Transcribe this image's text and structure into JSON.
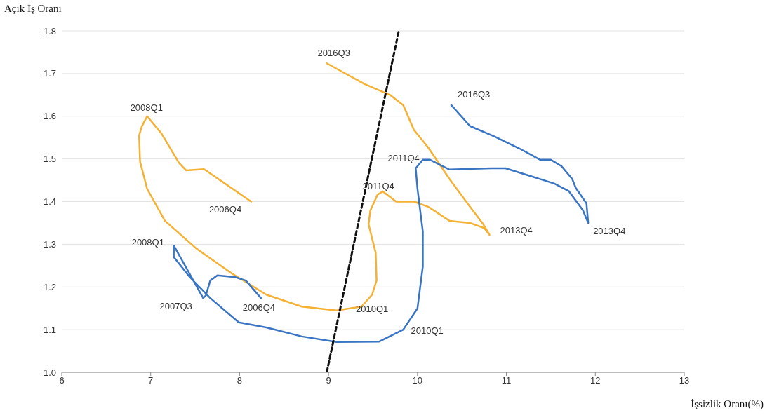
{
  "chart_data": {
    "type": "line",
    "xlabel": "İşsizlik Oranı(%)",
    "ylabel": "Açık İş Oranı",
    "xlim": [
      6,
      13
    ],
    "xticks": [
      6,
      7,
      8,
      9,
      10,
      11,
      12,
      13
    ],
    "ylim": [
      1.0,
      1.8
    ],
    "yticks": [
      {
        "value": 1.0,
        "label": "1.0"
      },
      {
        "value": 1.1,
        "label": "1.1"
      },
      {
        "value": 1.2,
        "label": "1.2"
      },
      {
        "value": 1.3,
        "label": "1.3"
      },
      {
        "value": 1.4,
        "label": "1.4"
      },
      {
        "value": 1.5,
        "label": "1.5"
      },
      {
        "value": 1.6,
        "label": "1.6"
      },
      {
        "value": 1.7,
        "label": "1.7"
      },
      {
        "value": 1.8,
        "label": "1.8"
      }
    ],
    "grid": "y",
    "series": [
      {
        "color": "#f5b133",
        "x": [
          8.13,
          7.6,
          7.4,
          7.32,
          7.12,
          6.96,
          6.9,
          6.87,
          6.88,
          6.96,
          7.16,
          7.52,
          7.91,
          8.3,
          8.7,
          9.09,
          9.37,
          9.49,
          9.54,
          9.53,
          9.45,
          9.47,
          9.55,
          9.61,
          9.76,
          9.96,
          10.12,
          10.36,
          10.59,
          10.75,
          10.81,
          10.74,
          10.59,
          10.36,
          10.12,
          9.96,
          9.84,
          9.69,
          9.41,
          8.98
        ],
        "values": [
          1.4,
          1.476,
          1.473,
          1.49,
          1.56,
          1.6,
          1.576,
          1.555,
          1.494,
          1.43,
          1.355,
          1.289,
          1.232,
          1.182,
          1.154,
          1.145,
          1.154,
          1.182,
          1.215,
          1.28,
          1.347,
          1.379,
          1.416,
          1.424,
          1.4,
          1.4,
          1.388,
          1.355,
          1.35,
          1.338,
          1.322,
          1.347,
          1.388,
          1.453,
          1.527,
          1.568,
          1.626,
          1.65,
          1.675,
          1.724
        ]
      },
      {
        "color": "#3a75c4",
        "x": [
          8.24,
          8.07,
          7.95,
          7.75,
          7.67,
          7.62,
          7.59,
          7.26,
          7.26,
          7.44,
          7.67,
          7.99,
          8.3,
          8.7,
          9.09,
          9.57,
          9.84,
          10.0,
          10.06,
          10.06,
          10.0,
          9.98,
          10.06,
          10.14,
          10.36,
          10.83,
          10.99,
          11.3,
          11.54,
          11.7,
          11.86,
          11.92,
          11.9,
          11.78,
          11.74,
          11.62,
          11.5,
          11.38,
          11.15,
          10.87,
          10.59,
          10.38
        ],
        "values": [
          1.174,
          1.215,
          1.223,
          1.227,
          1.215,
          1.18,
          1.174,
          1.297,
          1.27,
          1.223,
          1.174,
          1.117,
          1.105,
          1.084,
          1.071,
          1.072,
          1.1,
          1.15,
          1.248,
          1.33,
          1.43,
          1.478,
          1.498,
          1.498,
          1.475,
          1.478,
          1.478,
          1.458,
          1.442,
          1.425,
          1.38,
          1.35,
          1.396,
          1.432,
          1.453,
          1.483,
          1.498,
          1.498,
          1.524,
          1.552,
          1.577,
          1.626
        ]
      },
      {
        "color": "#111111",
        "line_style": "dashed",
        "x": [
          8.98,
          9.79
        ],
        "values": [
          1.0,
          1.8
        ]
      }
    ],
    "annotations": [
      {
        "text": "2016Q3",
        "x": 8.98,
        "y": 1.724
      },
      {
        "text": "2008Q1",
        "x": 6.96,
        "y": 1.6
      },
      {
        "text": "2006Q4",
        "x": 8.13,
        "y": 1.4
      },
      {
        "text": "2011Q4",
        "x": 9.61,
        "y": 1.424
      },
      {
        "text": "2010Q1",
        "x": 9.37,
        "y": 1.154
      },
      {
        "text": "2013Q4",
        "x": 10.81,
        "y": 1.322
      },
      {
        "text": "2016Q3",
        "x": 10.38,
        "y": 1.626
      },
      {
        "text": "2011Q4",
        "x": 10.06,
        "y": 1.498
      },
      {
        "text": "2013Q4",
        "x": 11.92,
        "y": 1.35
      },
      {
        "text": "2010Q1",
        "x": 9.84,
        "y": 1.1
      },
      {
        "text": "2008Q1",
        "x": 7.26,
        "y": 1.297
      },
      {
        "text": "2007Q3",
        "x": 7.59,
        "y": 1.174
      },
      {
        "text": "2006Q4",
        "x": 8.24,
        "y": 1.174
      }
    ]
  }
}
